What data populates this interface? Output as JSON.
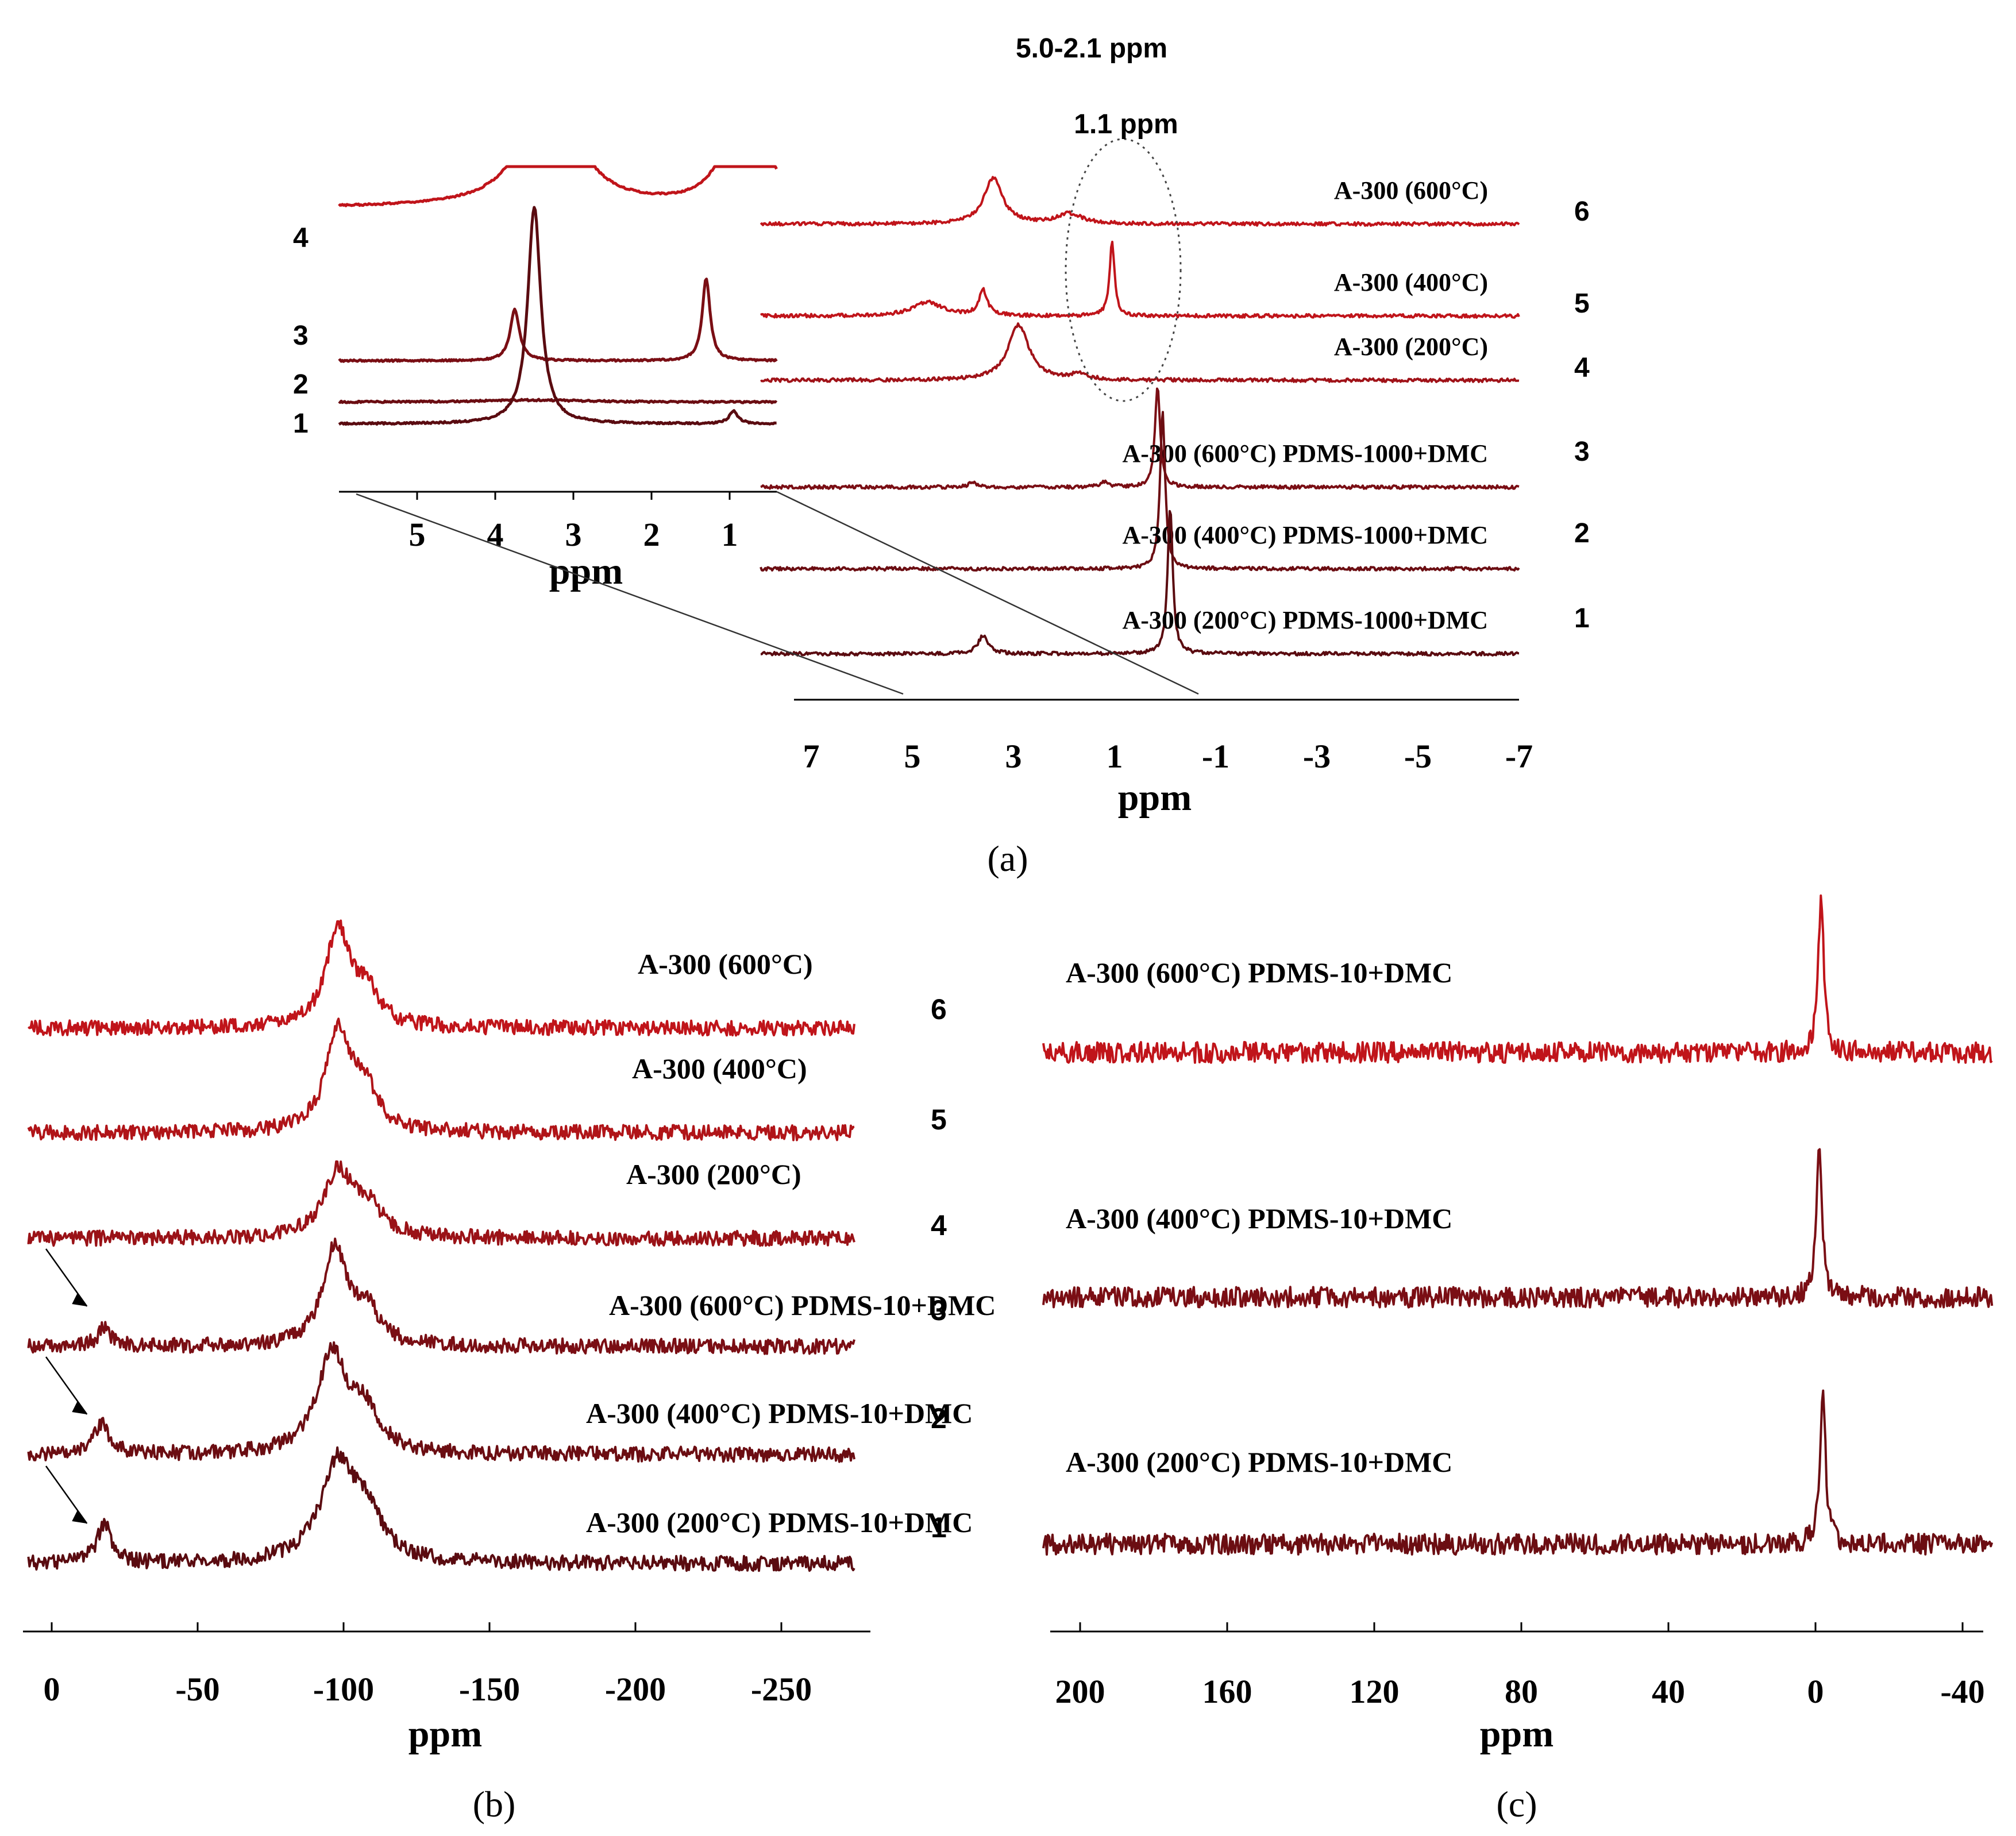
{
  "chart_data": [
    {
      "id": "a",
      "type": "line",
      "subtype": "stacked NMR spectra",
      "panel_label": "(a)",
      "annotations": [
        "5.0-2.1 ppm",
        "1.1 ppm"
      ],
      "xlabel": "ppm",
      "x_reversed": true,
      "xlim": [
        8,
        -7
      ],
      "xticks": [
        7,
        5,
        3,
        1,
        -1,
        -3,
        -5,
        -7
      ],
      "color_red": "#c0141a",
      "color_dark": "#6b0d12",
      "series": [
        {
          "num": "6",
          "name": "A-300 (600°C)",
          "peaks": [
            {
              "ppm": 3.4,
              "height": 1.0,
              "width": 0.22
            },
            {
              "ppm": 1.9,
              "height": 0.22,
              "width": 0.3
            }
          ]
        },
        {
          "num": "5",
          "name": "A-300 (400°C)",
          "peaks": [
            {
              "ppm": 4.7,
              "height": 0.3,
              "width": 0.35
            },
            {
              "ppm": 3.6,
              "height": 0.55,
              "width": 0.1
            },
            {
              "ppm": 1.05,
              "height": 1.6,
              "width": 0.06
            }
          ]
        },
        {
          "num": "4",
          "name": "A-300 (200°C)",
          "peaks": [
            {
              "ppm": 2.9,
              "height": 1.2,
              "width": 0.25
            },
            {
              "ppm": 1.7,
              "height": 0.12,
              "width": 0.2
            }
          ]
        },
        {
          "num": "3",
          "name": "A-300 (600°C) PDMS-1000+DMC",
          "peaks": [
            {
              "ppm": 3.8,
              "height": 0.1,
              "width": 0.1
            },
            {
              "ppm": 1.2,
              "height": 0.12,
              "width": 0.1
            },
            {
              "ppm": 0.15,
              "height": 2.2,
              "width": 0.06
            }
          ]
        },
        {
          "num": "2",
          "name": "A-300 (400°C) PDMS-1000+DMC",
          "peaks": [
            {
              "ppm": 0.05,
              "height": 3.4,
              "width": 0.06
            }
          ]
        },
        {
          "num": "1",
          "name": "A-300 (200°C) PDMS-1000+DMC",
          "peaks": [
            {
              "ppm": 3.6,
              "height": 0.4,
              "width": 0.12
            },
            {
              "ppm": -0.1,
              "height": 3.2,
              "width": 0.06
            }
          ]
        }
      ]
    },
    {
      "id": "a-inset",
      "type": "line",
      "subtype": "expanded region 5.0-2.1 ppm",
      "xlabel": "ppm",
      "x_reversed": true,
      "xlim": [
        6,
        0.4
      ],
      "xticks": [
        5,
        4,
        3,
        2,
        1
      ],
      "series": [
        {
          "num": "4",
          "name": "A-300 (200°C)",
          "note": "off-scale",
          "peaks": [
            {
              "ppm": 3.3,
              "height": 7.0,
              "width": 0.35
            },
            {
              "ppm": 0.8,
              "height": 9.0,
              "width": 0.2
            }
          ]
        },
        {
          "num": "3",
          "name": "A-300 (600°C) PDMS-1000+DMC",
          "peaks": [
            {
              "ppm": 3.75,
              "height": 2.5,
              "width": 0.07
            },
            {
              "ppm": 1.3,
              "height": 4.0,
              "width": 0.06
            }
          ]
        },
        {
          "num": "2",
          "name": "A-300 (400°C) PDMS-1000+DMC",
          "peaks": [
            {
              "ppm": 3.5,
              "height": 0.1,
              "width": 0.8
            }
          ]
        },
        {
          "num": "1",
          "name": "A-300 (200°C) PDMS-1000+DMC",
          "peaks": [
            {
              "ppm": 3.5,
              "height": 10.5,
              "width": 0.1
            },
            {
              "ppm": 0.95,
              "height": 0.6,
              "width": 0.07
            }
          ]
        }
      ]
    },
    {
      "id": "b",
      "type": "line",
      "subtype": "stacked NMR spectra",
      "panel_label": "(b)",
      "xlabel": "ppm",
      "x_reversed": true,
      "xlim": [
        8,
        -275
      ],
      "xticks": [
        0,
        -50,
        -100,
        -150,
        -200,
        -250
      ],
      "series": [
        {
          "num": "6",
          "name": "A-300 (600°C)",
          "peaks": [
            {
              "ppm": -98,
              "height": 1.0,
              "width": 5
            },
            {
              "ppm": -108,
              "height": 0.35,
              "width": 5
            }
          ]
        },
        {
          "num": "5",
          "name": "A-300 (400°C)",
          "peaks": [
            {
              "ppm": -98,
              "height": 1.0,
              "width": 5
            },
            {
              "ppm": -107,
              "height": 0.45,
              "width": 5
            }
          ]
        },
        {
          "num": "4",
          "name": "A-300 (200°C)",
          "peaks": [
            {
              "ppm": -98,
              "height": 0.65,
              "width": 6
            },
            {
              "ppm": -108,
              "height": 0.3,
              "width": 6
            }
          ]
        },
        {
          "num": "3",
          "name": "A-300 (600°C) PDMS-10+DMC",
          "peaks": [
            {
              "ppm": -18,
              "height": 0.2,
              "width": 2.5
            },
            {
              "ppm": -97,
              "height": 1.0,
              "width": 5
            },
            {
              "ppm": -108,
              "height": 0.35,
              "width": 5
            }
          ]
        },
        {
          "num": "2",
          "name": "A-300 (400°C) PDMS-10+DMC",
          "peaks": [
            {
              "ppm": -17,
              "height": 0.32,
              "width": 3
            },
            {
              "ppm": -96,
              "height": 1.0,
              "width": 6
            },
            {
              "ppm": -107,
              "height": 0.4,
              "width": 6
            }
          ]
        },
        {
          "num": "1",
          "name": "A-300 (200°C) PDMS-10+DMC",
          "peaks": [
            {
              "ppm": -18,
              "height": 0.4,
              "width": 3
            },
            {
              "ppm": -98,
              "height": 1.0,
              "width": 7
            },
            {
              "ppm": -108,
              "height": 0.45,
              "width": 6
            }
          ]
        }
      ]
    },
    {
      "id": "c",
      "type": "line",
      "subtype": "stacked NMR spectra",
      "panel_label": "(c)",
      "xlabel": "ppm",
      "x_reversed": true,
      "xlim": [
        210,
        -48
      ],
      "xticks": [
        200,
        160,
        120,
        80,
        40,
        0,
        -40
      ],
      "series": [
        {
          "name": "A-300 (600°C) PDMS-10+DMC",
          "peaks": [
            {
              "ppm": -1.5,
              "height": 1.0,
              "width": 0.9
            }
          ]
        },
        {
          "name": "A-300 (400°C) PDMS-10+DMC",
          "peaks": [
            {
              "ppm": -1.0,
              "height": 1.0,
              "width": 0.9
            }
          ]
        },
        {
          "name": "A-300 (200°C) PDMS-10+DMC",
          "peaks": [
            {
              "ppm": -2.0,
              "height": 1.0,
              "width": 0.9
            }
          ]
        }
      ]
    }
  ]
}
